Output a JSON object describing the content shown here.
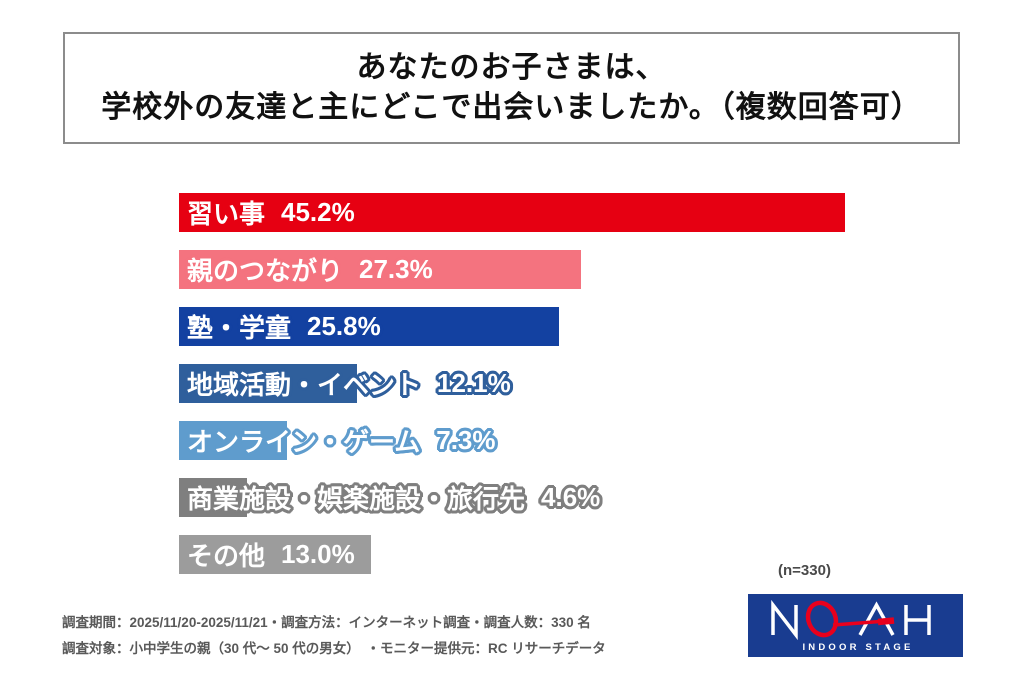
{
  "title": {
    "line1": "あなたのお子さまは、",
    "line2": "学校外の友達と主にどこで出会いましたか。（複数回答可）"
  },
  "chart_data": {
    "type": "bar",
    "orientation": "horizontal",
    "title": "あなたのお子さまは、学校外の友達と主にどこで出会いましたか。（複数回答可）",
    "categories": [
      "習い事",
      "親のつながり",
      "塾・学童",
      "地域活動・イベント",
      "オンライン・ゲーム",
      "商業施設・娯楽施設・旅行先",
      "その他"
    ],
    "values": [
      45.2,
      27.3,
      25.8,
      12.1,
      7.3,
      4.6,
      13.0
    ],
    "value_labels": [
      "45.2%",
      "27.3%",
      "25.8%",
      "12.1%",
      "7.3%",
      "4.6%",
      "13.0%"
    ],
    "bar_colors": [
      "#e60012",
      "#f4737f",
      "#1341a1",
      "#2f5f9c",
      "#5f9ccd",
      "#7f7f7f",
      "#9c9c9c"
    ],
    "xlim": [
      0,
      50
    ],
    "grid": false,
    "legend": false,
    "sample_note": "(n=330)"
  },
  "footer": {
    "line1": "調査期間：2025/11/20-2025/11/21・調査方法：インターネット調査・調査人数：330 名",
    "line2": "調査対象：小中学生の親（30 代〜 50 代の男女）　・モニター提供元：RC リサーチデータ"
  },
  "logo": {
    "brand": "NOAH",
    "subtext": "INDOOR STAGE",
    "bg_color": "#193c90",
    "accent_color": "#e8001d"
  }
}
